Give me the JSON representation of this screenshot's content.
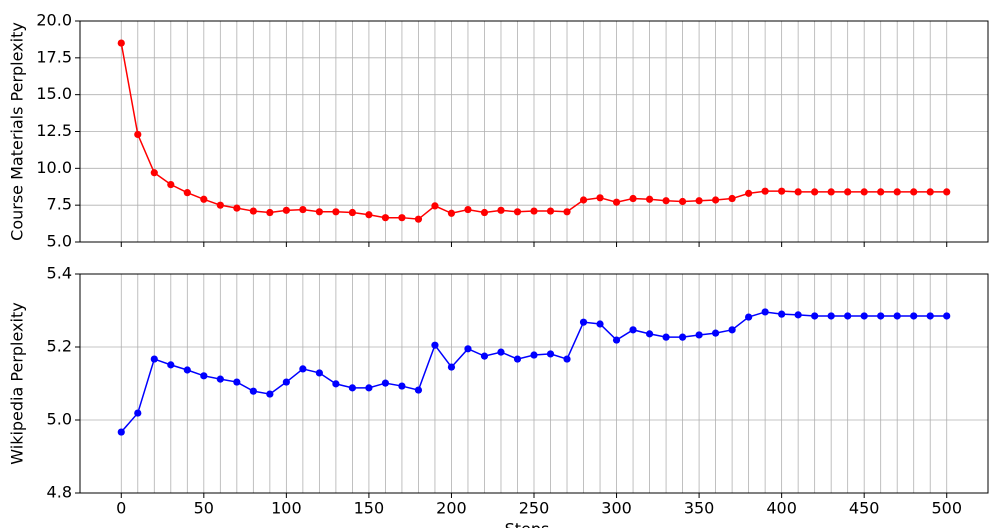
{
  "chart_data": [
    {
      "type": "line",
      "ylabel": "Course Materials Perplexity",
      "x": [
        0,
        10,
        20,
        30,
        40,
        50,
        60,
        70,
        80,
        90,
        100,
        110,
        120,
        130,
        140,
        150,
        160,
        170,
        180,
        190,
        200,
        210,
        220,
        230,
        240,
        250,
        260,
        270,
        280,
        290,
        300,
        310,
        320,
        330,
        340,
        350,
        360,
        370,
        380,
        390,
        400,
        410,
        420,
        430,
        440,
        450,
        460,
        470,
        480,
        490,
        500
      ],
      "series": [
        {
          "color": "#ff0000",
          "values": [
            18.5,
            12.3,
            9.7,
            8.9,
            8.35,
            7.9,
            7.5,
            7.3,
            7.1,
            7.0,
            7.15,
            7.2,
            7.05,
            7.05,
            7.0,
            6.85,
            6.65,
            6.65,
            6.55,
            7.45,
            6.95,
            7.2,
            7.0,
            7.15,
            7.05,
            7.1,
            7.1,
            7.05,
            7.85,
            8.0,
            7.7,
            7.95,
            7.9,
            7.8,
            7.75,
            7.8,
            7.85,
            7.95,
            8.3,
            8.45,
            8.45,
            8.4,
            8.4,
            8.4,
            8.4,
            8.4,
            8.4,
            8.4,
            8.4,
            8.4,
            8.4
          ]
        }
      ],
      "xlim": [
        -25,
        525
      ],
      "xticks": [
        0,
        50,
        100,
        150,
        200,
        250,
        300,
        350,
        400,
        450,
        500
      ],
      "ylim": [
        5,
        20
      ],
      "yticks": [
        {
          "value": 5,
          "label": "5.0"
        },
        7.5,
        {
          "value": 10,
          "label": "10.0"
        },
        12.5,
        {
          "value": 15,
          "label": "15.0"
        },
        17.5,
        {
          "value": 20,
          "label": "20.0"
        }
      ],
      "grid": true
    },
    {
      "type": "line",
      "ylabel": "Wikipedia Perplexity",
      "xlabel": "Steps",
      "x": [
        0,
        10,
        20,
        30,
        40,
        50,
        60,
        70,
        80,
        90,
        100,
        110,
        120,
        130,
        140,
        150,
        160,
        170,
        180,
        190,
        200,
        210,
        220,
        230,
        240,
        250,
        260,
        270,
        280,
        290,
        300,
        310,
        320,
        330,
        340,
        350,
        360,
        370,
        380,
        390,
        400,
        410,
        420,
        430,
        440,
        450,
        460,
        470,
        480,
        490,
        500
      ],
      "series": [
        {
          "color": "#0000ff",
          "values": [
            4.967,
            5.019,
            5.167,
            5.151,
            5.137,
            5.121,
            5.112,
            5.104,
            5.079,
            5.071,
            5.104,
            5.14,
            5.129,
            5.099,
            5.088,
            5.088,
            5.101,
            5.093,
            5.082,
            5.205,
            5.145,
            5.195,
            5.175,
            5.186,
            5.167,
            5.178,
            5.181,
            5.167,
            5.268,
            5.263,
            5.219,
            5.247,
            5.236,
            5.227,
            5.227,
            5.233,
            5.238,
            5.247,
            5.282,
            5.296,
            5.29,
            5.288,
            5.285,
            5.285,
            5.285,
            5.285,
            5.285,
            5.285,
            5.285,
            5.285,
            5.285
          ]
        }
      ],
      "xlim": [
        -25,
        525
      ],
      "xticks": [
        0,
        50,
        100,
        150,
        200,
        250,
        300,
        350,
        400,
        450,
        500
      ],
      "ylim": [
        4.8,
        5.4
      ],
      "yticks": [
        4.8,
        {
          "value": 5,
          "label": "5.0"
        },
        5.2,
        5.4
      ],
      "grid": true
    }
  ]
}
